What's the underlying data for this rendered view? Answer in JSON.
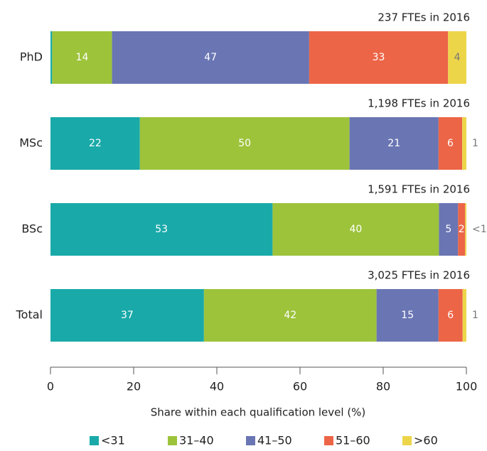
{
  "chart_data": {
    "type": "stacked-bar-horizontal",
    "categories": [
      "PhD",
      "MSc",
      "BSc",
      "Total"
    ],
    "annotations": [
      "237 FTEs in 2016",
      "1,198 FTEs in 2016",
      "1,591 FTEs in 2016",
      "3,025 FTEs in 2016"
    ],
    "series": [
      {
        "name": "<31",
        "color": "#1aa9a9",
        "values": [
          0.4,
          21.5,
          53.4,
          36.9
        ],
        "value_labels": [
          "<1",
          "22",
          "53",
          "37"
        ]
      },
      {
        "name": "31–40",
        "color": "#9dc33b",
        "values": [
          14.4,
          50.4,
          40,
          41.5
        ],
        "value_labels": [
          "14",
          "50",
          "40",
          "42"
        ]
      },
      {
        "name": "41–50",
        "color": "#6a75b3",
        "values": [
          47.4,
          21.4,
          4.6,
          14.9
        ],
        "value_labels": [
          "47",
          "21",
          "5",
          "15"
        ]
      },
      {
        "name": "51–60",
        "color": "#ec6547",
        "values": [
          33.4,
          5.7,
          1.7,
          5.8
        ],
        "value_labels": [
          "33",
          "6",
          "2",
          "6"
        ]
      },
      {
        "name": ">60",
        "color": "#edd54a",
        "values": [
          4.4,
          1,
          0.3,
          0.9
        ],
        "value_labels": [
          "4",
          "1",
          "<1",
          "1"
        ]
      }
    ],
    "xlabel": "Share within each qualification level (%)",
    "xlim": [
      0,
      100
    ],
    "xticks": [
      0,
      20,
      40,
      60,
      80,
      100
    ]
  }
}
